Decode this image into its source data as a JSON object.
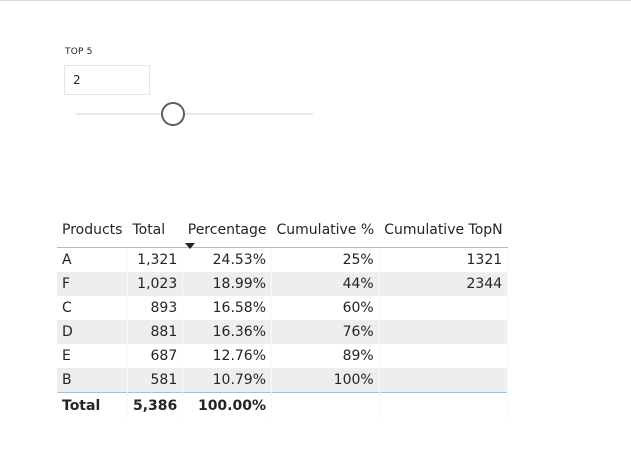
{
  "slicer": {
    "title": "TOP 5",
    "value": "2"
  },
  "table": {
    "headers": [
      "Products",
      "Total",
      "Percentage",
      "Cumulative %",
      "Cumulative TopN"
    ],
    "sorted_column": "Percentage",
    "rows": [
      {
        "product": "A",
        "total": "1,321",
        "percentage": "24.53%",
        "cumulative": "25%",
        "topn": "1321"
      },
      {
        "product": "F",
        "total": "1,023",
        "percentage": "18.99%",
        "cumulative": "44%",
        "topn": "2344"
      },
      {
        "product": "C",
        "total": "893",
        "percentage": "16.58%",
        "cumulative": "60%",
        "topn": ""
      },
      {
        "product": "D",
        "total": "881",
        "percentage": "16.36%",
        "cumulative": "76%",
        "topn": ""
      },
      {
        "product": "E",
        "total": "687",
        "percentage": "12.76%",
        "cumulative": "89%",
        "topn": ""
      },
      {
        "product": "B",
        "total": "581",
        "percentage": "10.79%",
        "cumulative": "100%",
        "topn": ""
      }
    ],
    "total": {
      "label": "Total",
      "total": "5,386",
      "percentage": "100.00%",
      "cumulative": "",
      "topn": ""
    }
  },
  "colors": {
    "header_border": "#9cc3e6",
    "alt_row": "#eeeeee"
  }
}
